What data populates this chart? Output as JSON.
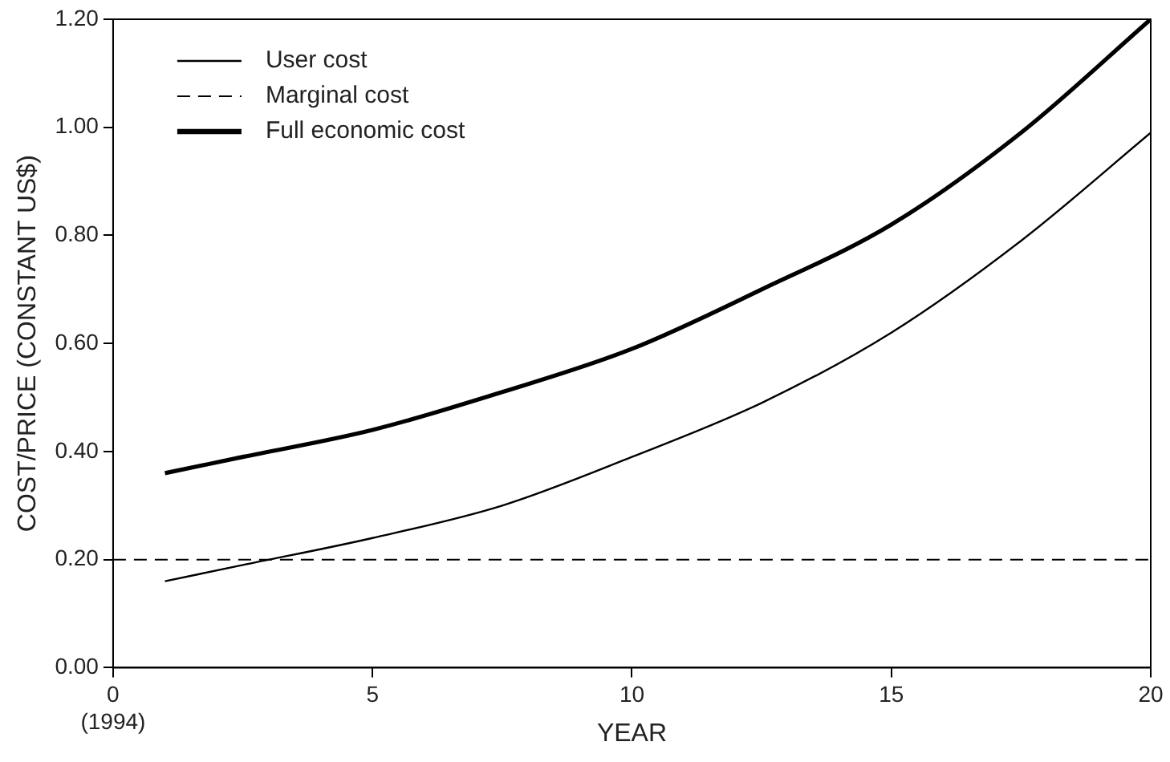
{
  "chart_data": {
    "type": "line",
    "xlabel": "YEAR",
    "ylabel": "COST/PRICE (CONSTANT US$)",
    "xlim": [
      0,
      20
    ],
    "xticks": [
      {
        "value": 0,
        "label": "0\n(1994)"
      },
      5,
      10,
      15,
      20
    ],
    "ylim": [
      0,
      1.2
    ],
    "yticks": [
      {
        "value": 0,
        "label": "0.00"
      },
      {
        "value": 0.2,
        "label": "0.20"
      },
      {
        "value": 0.4,
        "label": "0.40"
      },
      {
        "value": 0.6,
        "label": "0.60"
      },
      {
        "value": 0.8,
        "label": "0.80"
      },
      {
        "value": 1,
        "label": "1.00"
      },
      {
        "value": 1.2,
        "label": "1.20"
      }
    ],
    "grid": false,
    "legend": "top left",
    "marker": "none",
    "series": [
      {
        "name": "User cost",
        "color": "#000000",
        "line_style": "solid",
        "x": [
          1,
          2.5,
          5,
          7.5,
          10,
          12.5,
          15,
          17.5,
          20
        ],
        "values": [
          0.16,
          0.19,
          0.24,
          0.3,
          0.39,
          0.49,
          0.62,
          0.79,
          0.99
        ]
      },
      {
        "name": "Marginal cost",
        "color": "#000000",
        "line_style": "dashed",
        "x": [
          0,
          20
        ],
        "values": [
          0.2,
          0.2
        ]
      },
      {
        "name": "Full economic cost",
        "color": "#000000",
        "line_style": "solid",
        "x": [
          1,
          2.5,
          5,
          7.5,
          10,
          12.5,
          15,
          17.5,
          20
        ],
        "values": [
          0.36,
          0.39,
          0.44,
          0.51,
          0.59,
          0.7,
          0.82,
          0.99,
          1.2
        ]
      }
    ]
  }
}
